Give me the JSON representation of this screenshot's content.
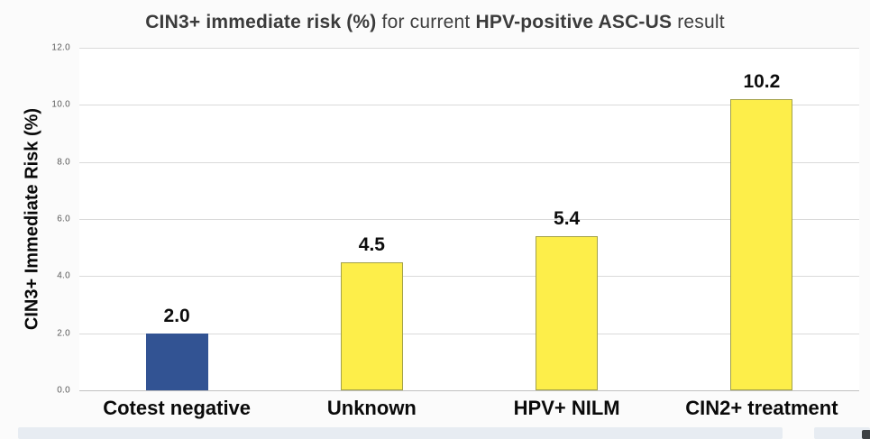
{
  "title": {
    "bold1": "CIN3+ immediate risk (%)",
    "regular1": " for current ",
    "bold2": "HPV-positive ASC-US",
    "regular2": " result"
  },
  "y_axis": {
    "label": "CIN3+ Immediate Risk (%)",
    "ticks": [
      "0.0",
      "2.0",
      "4.0",
      "6.0",
      "8.0",
      "10.0",
      "12.0"
    ],
    "min": 0,
    "max": 12,
    "step": 2
  },
  "chart_data": {
    "type": "bar",
    "title": "CIN3+ immediate risk (%) for current HPV-positive ASC-US result",
    "categories": [
      "Cotest negative",
      "Unknown",
      "HPV+ NILM",
      "CIN2+ treatment"
    ],
    "values": [
      2.0,
      4.5,
      5.4,
      10.2
    ],
    "value_labels": [
      "2.0",
      "4.5",
      "5.4",
      "10.2"
    ],
    "bar_colors": [
      "#325393",
      "#fdee4a",
      "#fdee4a",
      "#fdee4a"
    ],
    "bar_border_colors": [
      "#325393",
      "#a3a149",
      "#a3a149",
      "#a3a149"
    ],
    "xlabel": "",
    "ylabel": "CIN3+ Immediate Risk (%)",
    "ylim": [
      0,
      12
    ],
    "grid": true,
    "legend": false
  },
  "colors": {
    "blue_bar": "#325393",
    "yellow_bar": "#fdee4a",
    "yellow_bar_border": "#a3a149",
    "gridline": "#dadada",
    "title_text": "#3b3b3b",
    "bottom_strip": "#e7ecf2"
  }
}
